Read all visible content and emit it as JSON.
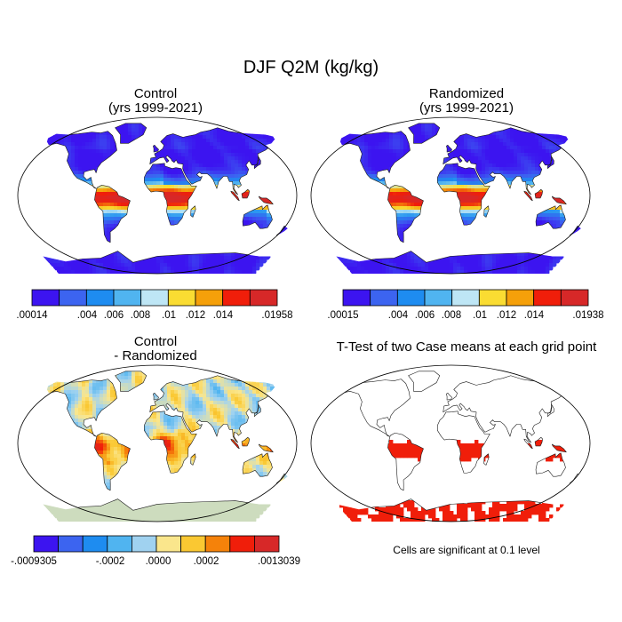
{
  "title": "DJF Q2M (kg/kg)",
  "footnote": "Cells are significant at 0.1 level",
  "chart_data": [
    {
      "type": "heatmap",
      "id": "control",
      "title": [
        "Control",
        "(yrs 1999-2021)"
      ],
      "colorbar": {
        "colors": [
          "#3c14f0",
          "#3c64f0",
          "#1e8cf0",
          "#50b4f0",
          "#bee6f5",
          "#fadc32",
          "#f5a00a",
          "#f01e0a",
          "#d72828"
        ],
        "tick_labels": [
          ".00014",
          ".004",
          ".006",
          ".008",
          ".01",
          ".012",
          ".014",
          ".01958"
        ],
        "range": [
          0.00014,
          0.01958
        ]
      }
    },
    {
      "type": "heatmap",
      "id": "randomized",
      "title": [
        "Randomized",
        "(yrs 1999-2021)"
      ],
      "colorbar": {
        "colors": [
          "#3c14f0",
          "#3c64f0",
          "#1e8cf0",
          "#50b4f0",
          "#bee6f5",
          "#fadc32",
          "#f5a00a",
          "#f01e0a",
          "#d72828"
        ],
        "tick_labels": [
          ".00015",
          ".004",
          ".006",
          ".008",
          ".01",
          ".012",
          ".014",
          ".01938"
        ],
        "range": [
          0.00015,
          0.01938
        ]
      }
    },
    {
      "type": "heatmap",
      "id": "difference",
      "title": [
        "Control",
        "- Randomized"
      ],
      "colorbar": {
        "colors": [
          "#3c14f0",
          "#3c64f0",
          "#1e8cf0",
          "#50b4f0",
          "#a0d2f0",
          "#fae68c",
          "#fac832",
          "#f5820a",
          "#f01e0a",
          "#d72828"
        ],
        "tick_labels": [
          "-.0009305",
          "-.0002",
          ".0000",
          ".0002",
          ".0013039"
        ],
        "range": [
          -0.0009305,
          0.0013039
        ]
      }
    },
    {
      "type": "heatmap",
      "id": "ttest",
      "title": [
        "T-Test of two Case means at each grid point"
      ],
      "significance_color": "#f01e0a"
    }
  ]
}
